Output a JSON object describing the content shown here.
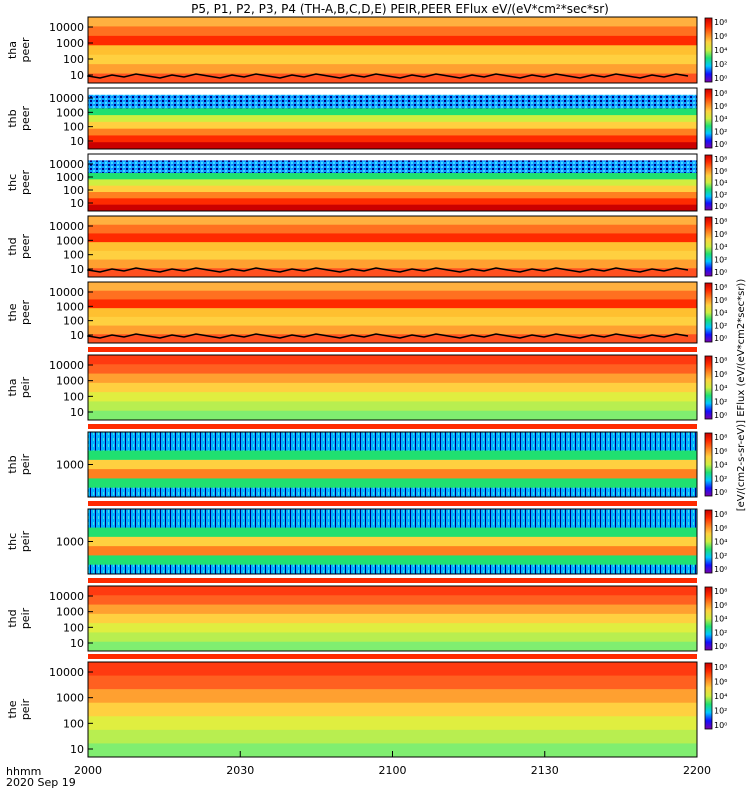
{
  "chart_data": {
    "type": "heatmap",
    "title": "P5, P1, P2, P3, P4 (TH-A,B,C,D,E) PEIR,PEER EFlux eV/(eV*cm²*sec*sr)",
    "x_ticks": [
      "2000",
      "2030",
      "2100",
      "2130",
      "2200"
    ],
    "x_axis_caption": "hhmm",
    "date_label": "2020 Sep 19",
    "colorbar_label": "[eV/(cm2-s-sr-eV)] EFlux (eV/(eV*cm2*sec*sr))",
    "colorbar_ticks": [
      "10⁸",
      "10⁶",
      "10⁴",
      "10²",
      "10⁰"
    ],
    "colormap": [
      "#7a00aa",
      "#1010ff",
      "#00c8ff",
      "#20e070",
      "#d0ee40",
      "#ffd040",
      "#ff8020",
      "#ff2a00",
      "#cc0000"
    ],
    "panels": [
      {
        "probe": "tha",
        "species": "peer",
        "yticks": [
          "10000",
          "1000",
          "100",
          "10"
        ],
        "has_black_line": true,
        "noise": false
      },
      {
        "probe": "thb",
        "species": "peer",
        "yticks": [
          "10000",
          "1000",
          "100",
          "10"
        ],
        "has_black_line": false,
        "noise": true
      },
      {
        "probe": "thc",
        "species": "peer",
        "yticks": [
          "10000",
          "1000",
          "100",
          "10"
        ],
        "has_black_line": false,
        "noise": true
      },
      {
        "probe": "thd",
        "species": "peer",
        "yticks": [
          "10000",
          "1000",
          "100",
          "10"
        ],
        "has_black_line": true,
        "noise": false
      },
      {
        "probe": "the",
        "species": "peer",
        "yticks": [
          "10000",
          "1000",
          "100",
          "10"
        ],
        "has_black_line": true,
        "noise": false
      },
      {
        "probe": "tha",
        "species": "peir",
        "yticks": [
          "10000",
          "1000",
          "100",
          "10"
        ],
        "has_black_line": false,
        "noise": false
      },
      {
        "probe": "thb",
        "species": "peir",
        "yticks": [
          "1000"
        ],
        "has_black_line": false,
        "noise": true
      },
      {
        "probe": "thc",
        "species": "peir",
        "yticks": [
          "1000"
        ],
        "has_black_line": false,
        "noise": true
      },
      {
        "probe": "thd",
        "species": "peir",
        "yticks": [
          "10000",
          "1000",
          "100",
          "10"
        ],
        "has_black_line": false,
        "noise": false
      },
      {
        "probe": "the",
        "species": "peir",
        "yticks": [
          "10000",
          "1000",
          "100",
          "10"
        ],
        "has_black_line": false,
        "noise": false
      }
    ]
  }
}
